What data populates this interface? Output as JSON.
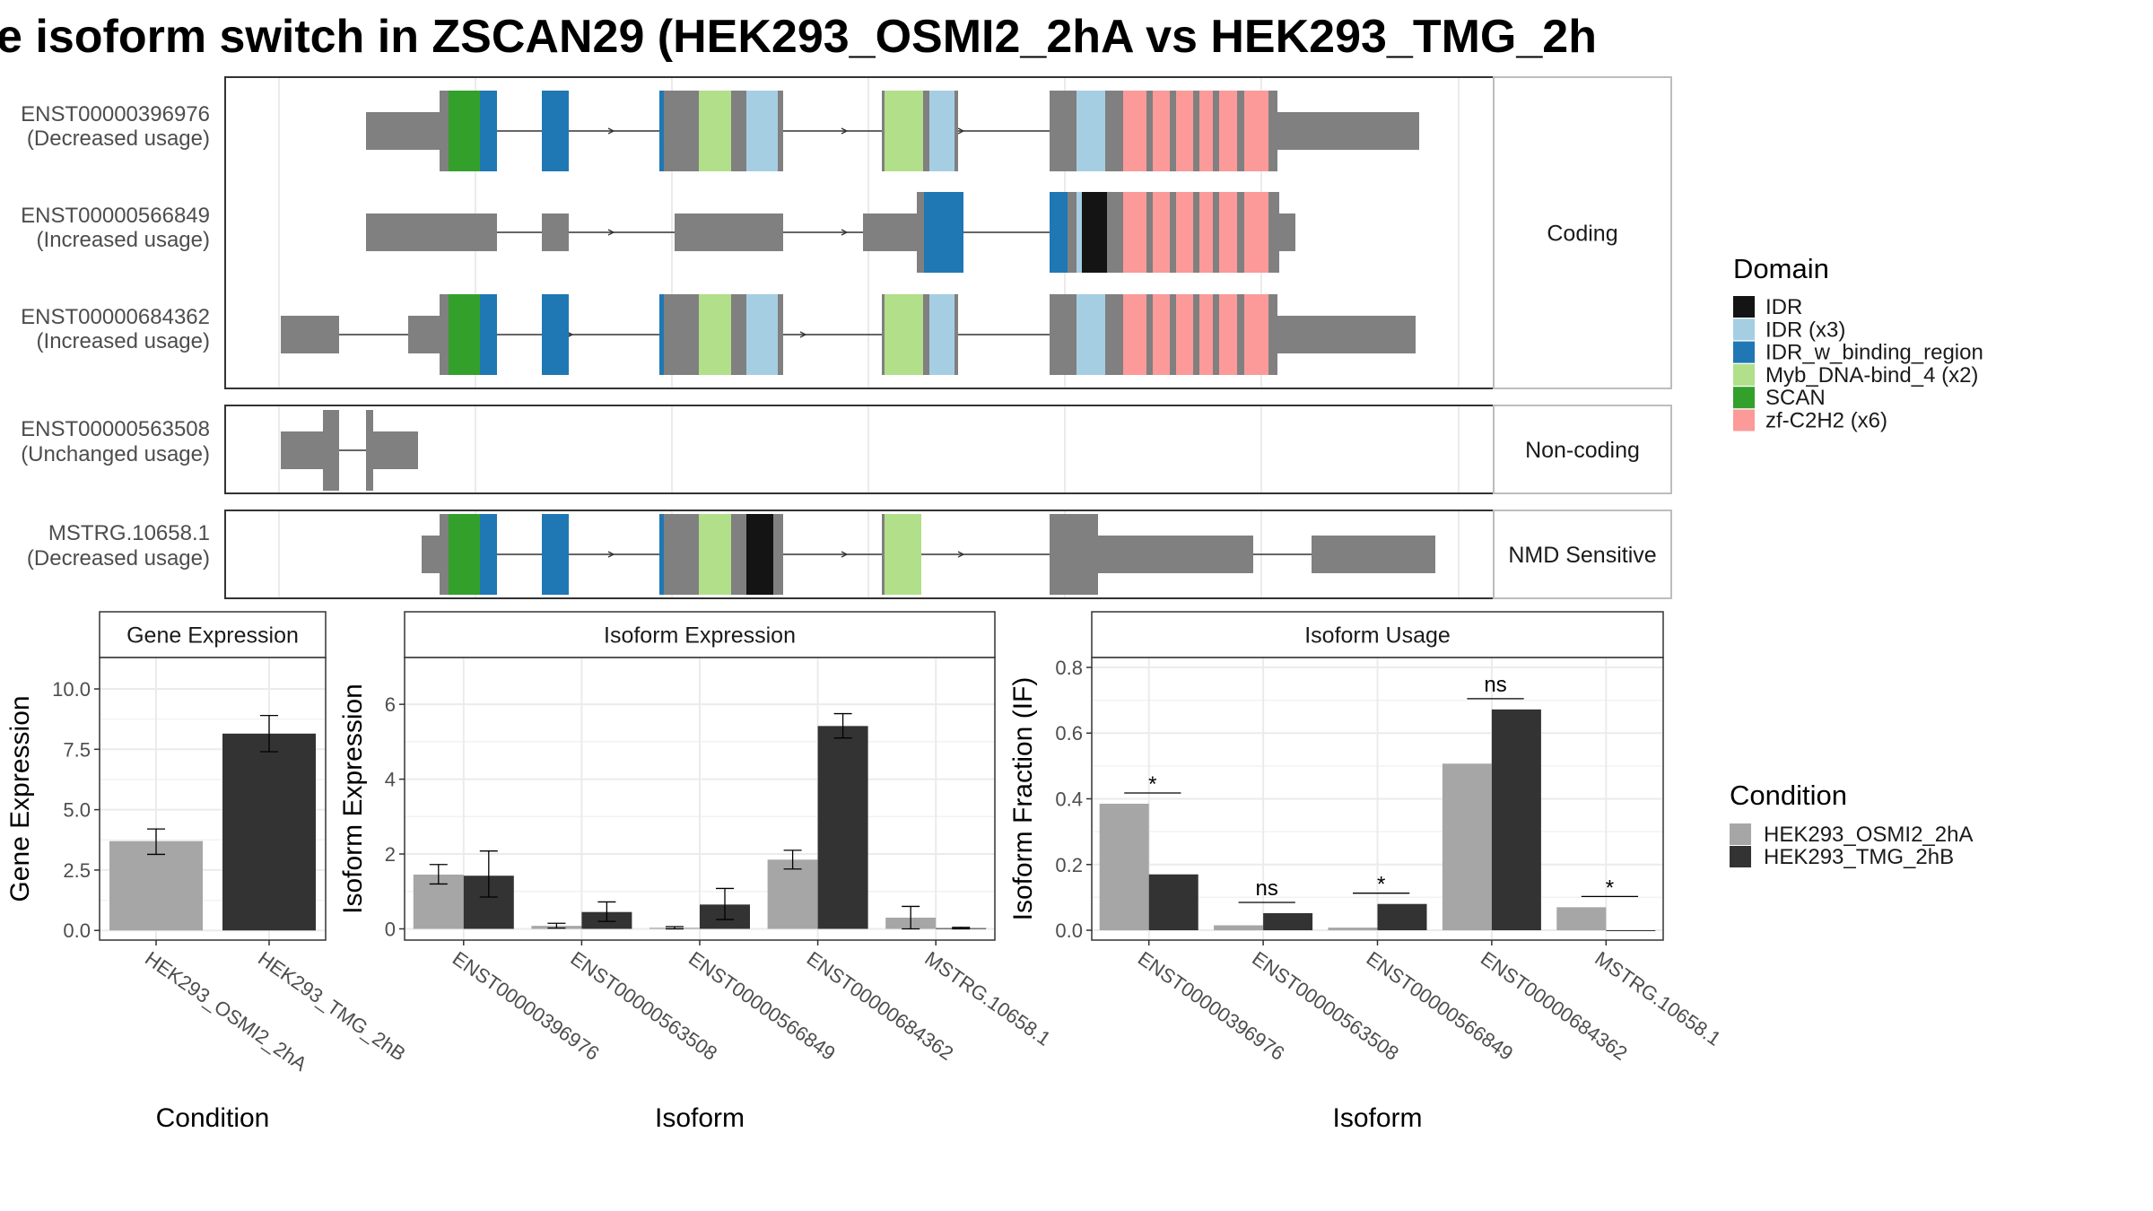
{
  "title": "e isoform switch in ZSCAN29 (HEK293_OSMI2_2hA vs HEK293_TMG_2h",
  "colors": {
    "exon": "#808080",
    "IDR": "#141414",
    "IDR (x3)": "#a6cee3",
    "IDR_w_binding_region": "#1f78b4",
    "Myb_DNA-bind_4 (x2)": "#b2df8a",
    "SCAN": "#33a02c",
    "zf-C2H2 (x6)": "#fb9a99",
    "condA": "#a6a6a6",
    "condB": "#333333"
  },
  "structure": {
    "facets": [
      "Coding",
      "Non-coding",
      "NMD Sensitive"
    ],
    "transcripts": [
      {
        "id": "ENST00000396976",
        "usage": "(Decreased usage)",
        "facet": "Coding"
      },
      {
        "id": "ENST00000566849",
        "usage": "(Increased usage)",
        "facet": "Coding"
      },
      {
        "id": "ENST00000684362",
        "usage": "(Increased usage)",
        "facet": "Coding"
      },
      {
        "id": "ENST00000563508",
        "usage": "(Unchanged usage)",
        "facet": "Non-coding"
      },
      {
        "id": "MSTRG.10658.1",
        "usage": "(Decreased usage)",
        "facet": "NMD Sensitive"
      }
    ]
  },
  "legend_domain": {
    "title": "Domain",
    "items": [
      "IDR",
      "IDR (x3)",
      "IDR_w_binding_region",
      "Myb_DNA-bind_4 (x2)",
      "SCAN",
      "zf-C2H2 (x6)"
    ]
  },
  "legend_condition": {
    "title": "Condition",
    "items": [
      "HEK293_OSMI2_2hA",
      "HEK293_TMG_2hB"
    ]
  },
  "chart_data": [
    {
      "type": "bar",
      "title": "Gene Expression",
      "xlabel": "Condition",
      "ylabel": "Gene Expression",
      "categories": [
        "HEK293_OSMI2_2hA",
        "HEK293_TMG_2hB"
      ],
      "values": [
        3.7,
        8.15
      ],
      "errors": [
        [
          3.15,
          4.2
        ],
        [
          7.4,
          8.9
        ]
      ],
      "yticks": [
        "0.0",
        "2.5",
        "5.0",
        "7.5",
        "10.0"
      ],
      "ylim": [
        -0.4,
        11.3
      ]
    },
    {
      "type": "bar",
      "title": "Isoform Expression",
      "xlabel": "Isoform",
      "ylabel": "Isoform Expression",
      "categories": [
        "ENST00000396976",
        "ENST00000563508",
        "ENST00000566849",
        "ENST00000684362",
        "MSTRG.10658.1"
      ],
      "series": [
        {
          "name": "HEK293_OSMI2_2hA",
          "values": [
            1.45,
            0.08,
            0.03,
            1.85,
            0.3
          ],
          "errors": [
            [
              1.2,
              1.72
            ],
            [
              0.02,
              0.15
            ],
            [
              0.0,
              0.06
            ],
            [
              1.6,
              2.1
            ],
            [
              0.0,
              0.6
            ]
          ]
        },
        {
          "name": "HEK293_TMG_2hB",
          "values": [
            1.42,
            0.45,
            0.65,
            5.42,
            0.02
          ],
          "errors": [
            [
              0.85,
              2.08
            ],
            [
              0.2,
              0.72
            ],
            [
              0.25,
              1.08
            ],
            [
              5.1,
              5.75
            ],
            [
              0.0,
              0.04
            ]
          ]
        }
      ],
      "yticks": [
        "0",
        "2",
        "4",
        "6"
      ],
      "ylim": [
        -0.3,
        7.25
      ]
    },
    {
      "type": "bar",
      "title": "Isoform Usage",
      "xlabel": "Isoform",
      "ylabel": "Isoform Fraction (IF)",
      "categories": [
        "ENST00000396976",
        "ENST00000563508",
        "ENST00000566849",
        "ENST00000684362",
        "MSTRG.10658.1"
      ],
      "series": [
        {
          "name": "HEK293_OSMI2_2hA",
          "values": [
            0.385,
            0.015,
            0.008,
            0.507,
            0.07
          ]
        },
        {
          "name": "HEK293_TMG_2hB",
          "values": [
            0.17,
            0.052,
            0.08,
            0.672,
            0.0
          ]
        }
      ],
      "significance": [
        "*",
        "ns",
        "*",
        "ns",
        "*"
      ],
      "yticks": [
        "0.0",
        "0.2",
        "0.4",
        "0.6",
        "0.8"
      ],
      "ylim": [
        -0.03,
        0.83
      ]
    }
  ]
}
